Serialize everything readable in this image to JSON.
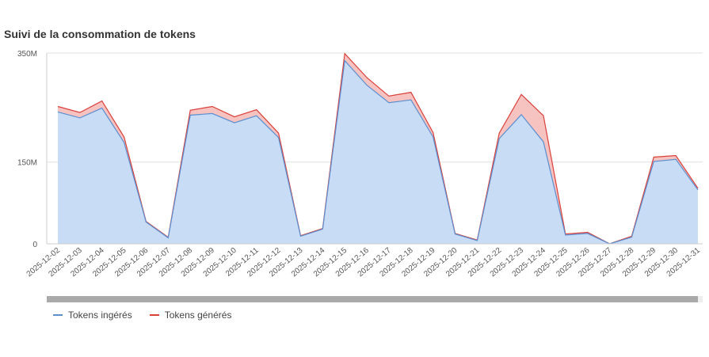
{
  "colors": {
    "ingested_line": "#5b8fd1",
    "ingested_fill": "#c8dcf5",
    "generated_line": "#d9403a",
    "generated_fill": "#f7c3c1",
    "grid": "#e0e0e0",
    "axis": "#cccccc"
  },
  "chart_data": {
    "type": "area",
    "stacked": true,
    "title": "Suivi de la consommation de tokens",
    "x": [
      "2025-12-02",
      "2025-12-03",
      "2025-12-04",
      "2025-12-05",
      "2025-12-06",
      "2025-12-07",
      "2025-12-08",
      "2025-12-09",
      "2025-12-10",
      "2025-12-11",
      "2025-12-12",
      "2025-12-13",
      "2025-12-14",
      "2025-12-15",
      "2025-12-16",
      "2025-12-17",
      "2025-12-18",
      "2025-12-19",
      "2025-12-20",
      "2025-12-21",
      "2025-12-22",
      "2025-12-23",
      "2025-12-24",
      "2025-12-25",
      "2025-12-26",
      "2025-12-27",
      "2025-12-28",
      "2025-12-29",
      "2025-12-30",
      "2025-12-31"
    ],
    "ylim": [
      0,
      350
    ],
    "yticks": [
      {
        "value": 0,
        "label": "0"
      },
      {
        "value": 150,
        "label": "150M"
      },
      {
        "value": 350,
        "label": "350M"
      }
    ],
    "grid": true,
    "legend_position": "bottom-left",
    "series": [
      {
        "name": "Tokens ingérés",
        "values": [
          242,
          231,
          249,
          186,
          40,
          11,
          236,
          239,
          222,
          235,
          195,
          14,
          27,
          336,
          291,
          259,
          264,
          196,
          18,
          6,
          193,
          237,
          187,
          16,
          19,
          0,
          12,
          151,
          155,
          99
        ]
      },
      {
        "name": "Tokens générés",
        "values": [
          10,
          10,
          13,
          10,
          1,
          1,
          9,
          13,
          11,
          11,
          8,
          1,
          1,
          13,
          14,
          12,
          14,
          8,
          1,
          1,
          10,
          37,
          48,
          2,
          2,
          0,
          2,
          8,
          7,
          3
        ]
      }
    ]
  }
}
